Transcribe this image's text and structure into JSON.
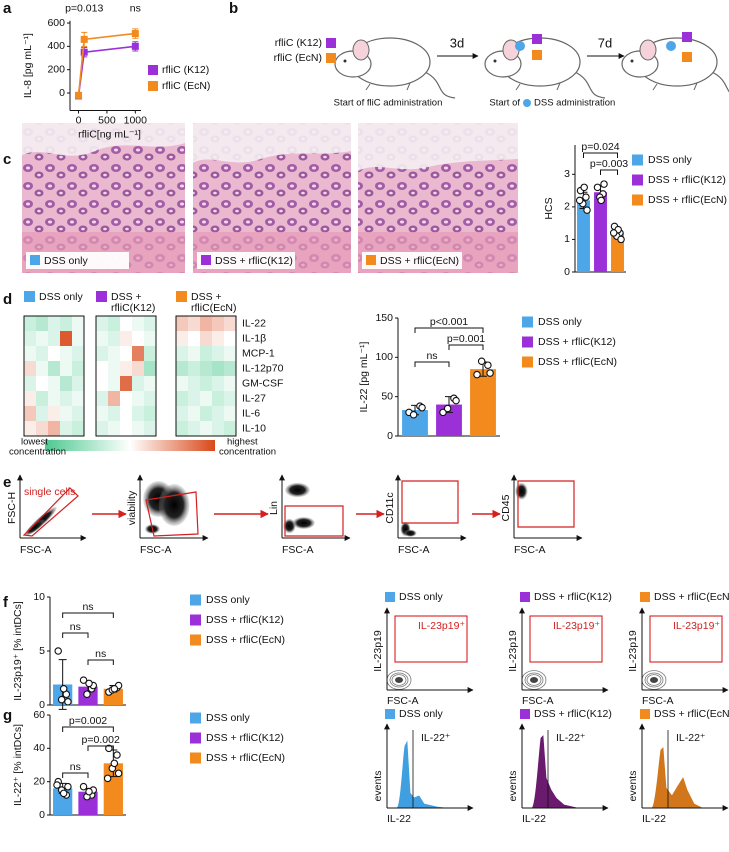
{
  "panel_labels": [
    "a",
    "b",
    "c",
    "d",
    "e",
    "f",
    "g"
  ],
  "timeline": {
    "legend": [
      "rfliC (K12)",
      "rfliC (EcN)"
    ],
    "steps": [
      "3d",
      "7d"
    ],
    "caption_first": "Start of fliC administration",
    "caption_second_pre": "Start of",
    "caption_second_post": "DSS administration"
  },
  "histology": {
    "labels": [
      "DSS only",
      "DSS + rfliC(K12)",
      "DSS + rfliC(EcN)"
    ]
  },
  "gating": {
    "plots": [
      {
        "y": "FSC-H",
        "x": "FSC-A"
      },
      {
        "y": "viability",
        "x": "FSC-A"
      },
      {
        "y": "Lin",
        "x": "FSC-A"
      },
      {
        "y": "CD11c",
        "x": "FSC-A"
      },
      {
        "y": "CD45",
        "x": "FSC-A"
      }
    ],
    "gate_label": "single cells"
  },
  "il23_flow": {
    "titles": [
      "DSS only",
      "DSS + rfliC(K12)",
      "DSS + rfliC(EcN)"
    ],
    "gate": "IL-23p19⁺",
    "y": "IL-23p19",
    "x": "FSC-A"
  },
  "il22_histograms": {
    "titles": [
      "DSS only",
      "DSS + rfliC(K12)",
      "DSS + rfliC(EcN)"
    ],
    "gate": "IL-22⁺",
    "y": "events",
    "x": "IL-22"
  },
  "chart_data": [
    {
      "type": "line",
      "ylabel": "IL-8 [pg mL⁻¹]",
      "xlabel": "rfliC[ng mL⁻¹]",
      "x": [
        0,
        100,
        1000
      ],
      "series": [
        {
          "name": "rfliC (K12)",
          "color": "#9b30d9",
          "values": [
            -25,
            350,
            400
          ],
          "errors": [
            15,
            40,
            40
          ]
        },
        {
          "name": "rfliC (EcN)",
          "color": "#f28a1e",
          "values": [
            -20,
            460,
            510
          ],
          "errors": [
            15,
            60,
            40
          ]
        }
      ],
      "xlim": [
        -150,
        1100
      ],
      "xticks": [
        0,
        500,
        1000
      ],
      "ylim": [
        -150,
        620
      ],
      "yticks": [
        0,
        200,
        400,
        600
      ],
      "annotations": [
        {
          "text": "p=0.013",
          "x": 100
        },
        {
          "text": "ns",
          "x": 1000
        }
      ]
    },
    {
      "type": "bar",
      "ylabel": "HCS",
      "categories": [
        "DSS only",
        "DSS + rfliC(K12)",
        "DSS + rfliC(EcN)"
      ],
      "colors": [
        "#4da6e8",
        "#9b30d9",
        "#f28a1e"
      ],
      "values": [
        2.2,
        2.45,
        1.2
      ],
      "errors": [
        0.25,
        0.2,
        0.15
      ],
      "points": [
        [
          2.5,
          2.3,
          2.1,
          1.9,
          2.6,
          2.2
        ],
        [
          2.6,
          2.4,
          2.3,
          2.7,
          2.2
        ],
        [
          1.4,
          1.2,
          1.1,
          1.0,
          1.3,
          1.2
        ]
      ],
      "ylim": [
        0,
        3.9
      ],
      "yticks": [
        0,
        1,
        2,
        3
      ],
      "comparisons": [
        {
          "pair": [
            0,
            2
          ],
          "label": "p=0.024"
        },
        {
          "pair": [
            1,
            2
          ],
          "label": "p=0.003"
        }
      ]
    },
    {
      "type": "heatmap",
      "groups": [
        [
          "DSS only"
        ],
        [
          "DSS +",
          "rfliC(K12)"
        ],
        [
          "DSS +",
          "rfliC(EcN)"
        ]
      ],
      "group_colors": [
        "#4da6e8",
        "#9b30d9",
        "#f28a1e"
      ],
      "rows": [
        "IL-22",
        "IL-1β",
        "MCP-1",
        "IL-12p70",
        "GM-CSF",
        "IL-27",
        "IL-6",
        "IL-10"
      ],
      "values": [
        [
          [
            0.35,
            0.3,
            0.4,
            0.35,
            0.45
          ],
          [
            0.4,
            0.45,
            0.4,
            0.95,
            0.45
          ],
          [
            0.45,
            0.4,
            0.5,
            0.45,
            0.4
          ],
          [
            0.6,
            0.45,
            0.3,
            0.45,
            0.35
          ],
          [
            0.4,
            0.5,
            0.45,
            0.3,
            0.4
          ],
          [
            0.55,
            0.35,
            0.45,
            0.4,
            0.45
          ],
          [
            0.65,
            0.4,
            0.55,
            0.45,
            0.4
          ],
          [
            0.55,
            0.6,
            0.7,
            0.4,
            0.35
          ]
        ],
        [
          [
            0.4,
            0.35,
            0.5,
            0.45,
            0.4
          ],
          [
            0.45,
            0.4,
            0.55,
            0.5,
            0.45
          ],
          [
            0.4,
            0.45,
            0.5,
            0.85,
            0.35
          ],
          [
            0.5,
            0.45,
            0.55,
            0.6,
            0.25
          ],
          [
            0.5,
            0.45,
            0.9,
            0.4,
            0.45
          ],
          [
            0.4,
            0.7,
            0.5,
            0.45,
            0.4
          ],
          [
            0.45,
            0.4,
            0.5,
            0.4,
            0.35
          ],
          [
            0.4,
            0.45,
            0.5,
            0.45,
            0.4
          ]
        ],
        [
          [
            0.65,
            0.6,
            0.7,
            0.65,
            0.6
          ],
          [
            0.55,
            0.5,
            0.6,
            0.55,
            0.5
          ],
          [
            0.4,
            0.45,
            0.35,
            0.4,
            0.45
          ],
          [
            0.3,
            0.35,
            0.3,
            0.25,
            0.3
          ],
          [
            0.45,
            0.4,
            0.35,
            0.4,
            0.45
          ],
          [
            0.35,
            0.4,
            0.45,
            0.35,
            0.4
          ],
          [
            0.4,
            0.45,
            0.35,
            0.4,
            0.45
          ],
          [
            0.35,
            0.4,
            0.45,
            0.4,
            0.35
          ]
        ]
      ],
      "colorbar_low": [
        "lowest",
        "concentration"
      ],
      "colorbar_high": [
        "highest",
        "concentration"
      ]
    },
    {
      "type": "bar",
      "ylabel": "IL-22 [pg mL⁻¹]",
      "categories": [
        "DSS only",
        "DSS + rfliC(K12)",
        "DSS + rfliC(EcN)"
      ],
      "colors": [
        "#4da6e8",
        "#9b30d9",
        "#f28a1e"
      ],
      "values": [
        33,
        40,
        85
      ],
      "errors": [
        6,
        10,
        9
      ],
      "points": [
        [
          30,
          38,
          27,
          36
        ],
        [
          30,
          48,
          35,
          45
        ],
        [
          78,
          90,
          95,
          80
        ]
      ],
      "ylim": [
        0,
        150
      ],
      "yticks": [
        0,
        50,
        100,
        150
      ],
      "comparisons": [
        {
          "pair": [
            0,
            2
          ],
          "label": "p<0.001"
        },
        {
          "pair": [
            1,
            2
          ],
          "label": "p=0.001"
        },
        {
          "pair": [
            0,
            1
          ],
          "label": "ns"
        }
      ]
    },
    {
      "type": "bar",
      "ylabel": "IL-23p19⁺ [% intDCs]",
      "categories": [
        "DSS only",
        "DSS + rfliC(K12)",
        "DSS + rfliC(EcN)"
      ],
      "colors": [
        "#4da6e8",
        "#9b30d9",
        "#f28a1e"
      ],
      "values": [
        1.9,
        1.7,
        1.5
      ],
      "errors": [
        2.3,
        0.5,
        0.3
      ],
      "points": [
        [
          5,
          1,
          0.5,
          0.3,
          1.5
        ],
        [
          2.3,
          1.5,
          1,
          1.8,
          2.0
        ],
        [
          1.2,
          1.6,
          1.4,
          1.8,
          1.5
        ]
      ],
      "ylim": [
        0,
        10
      ],
      "yticks": [
        0,
        5,
        10
      ],
      "comparisons": [
        {
          "pair": [
            0,
            2
          ],
          "label": "ns"
        },
        {
          "pair": [
            0,
            1
          ],
          "label": "ns"
        },
        {
          "pair": [
            1,
            2
          ],
          "label": "ns"
        }
      ]
    },
    {
      "type": "bar",
      "ylabel": "IL-22⁺ [% intDCs]",
      "categories": [
        "DSS only",
        "DSS + rfliC(K12)",
        "DSS + rfliC(EcN)"
      ],
      "colors": [
        "#4da6e8",
        "#9b30d9",
        "#f28a1e"
      ],
      "values": [
        16,
        14,
        31
      ],
      "errors": [
        3,
        2,
        8
      ],
      "points": [
        [
          20,
          12,
          15,
          17,
          13,
          18
        ],
        [
          17,
          12,
          11,
          15,
          14
        ],
        [
          40,
          36,
          28,
          25,
          31,
          22
        ]
      ],
      "ylim": [
        0,
        60
      ],
      "yticks": [
        0,
        20,
        40,
        60
      ],
      "comparisons": [
        {
          "pair": [
            0,
            2
          ],
          "label": "p=0.002"
        },
        {
          "pair": [
            1,
            2
          ],
          "label": "p=0.002"
        },
        {
          "pair": [
            0,
            1
          ],
          "label": "ns"
        }
      ]
    }
  ]
}
